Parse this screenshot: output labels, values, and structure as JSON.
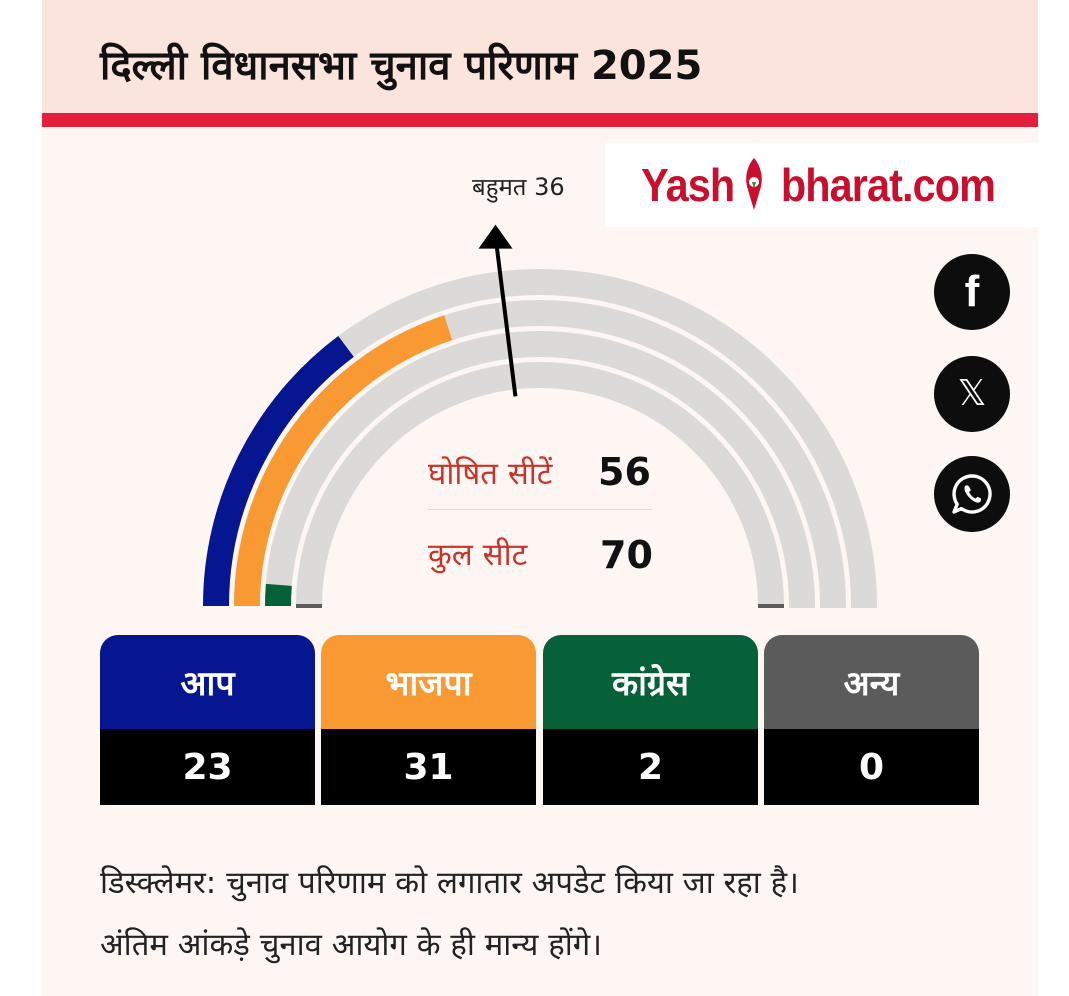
{
  "header": {
    "title": "दिल्ली विधानसभा चुनाव परिणाम 2025"
  },
  "logo": {
    "left": "Yash",
    "right": "bharat.com"
  },
  "social": {
    "facebook": "f",
    "x": "𝕏"
  },
  "colors": {
    "aap": "#061590",
    "bjp": "#f89a31",
    "congress": "#076138",
    "others": "#5b5b5b",
    "track": "#dcdad9",
    "accent": "#e51f3a"
  },
  "chart_data": {
    "type": "semicircle_gauge",
    "title": "दिल्ली विधानसभा चुनाव परिणाम 2025",
    "majority_label": "बहुमत 36",
    "majority": 36,
    "total_seats": 70,
    "declared_seats": 56,
    "declared_label": "घोषित सीटें",
    "total_label": "कुल सीट",
    "series": [
      {
        "name": "आप",
        "value": 23,
        "color": "#061590"
      },
      {
        "name": "भाजपा",
        "value": 31,
        "color": "#f89a31"
      },
      {
        "name": "कांग्रेस",
        "value": 2,
        "color": "#076138"
      },
      {
        "name": "अन्य",
        "value": 0,
        "color": "#5b5b5b"
      }
    ]
  },
  "parties": [
    {
      "name": "आप",
      "count": "23"
    },
    {
      "name": "भाजपा",
      "count": "31"
    },
    {
      "name": "कांग्रेस",
      "count": "2"
    },
    {
      "name": "अन्य",
      "count": "0"
    }
  ],
  "stats": {
    "declared_value": "56",
    "total_value": "70"
  },
  "disclaimer": {
    "line1": "डिस्क्लेमर: चुनाव परिणाम को लगातार अपडेट किया जा रहा है।",
    "line2": "अंतिम आंकड़े चुनाव आयोग के ही मान्य होंगे।"
  }
}
